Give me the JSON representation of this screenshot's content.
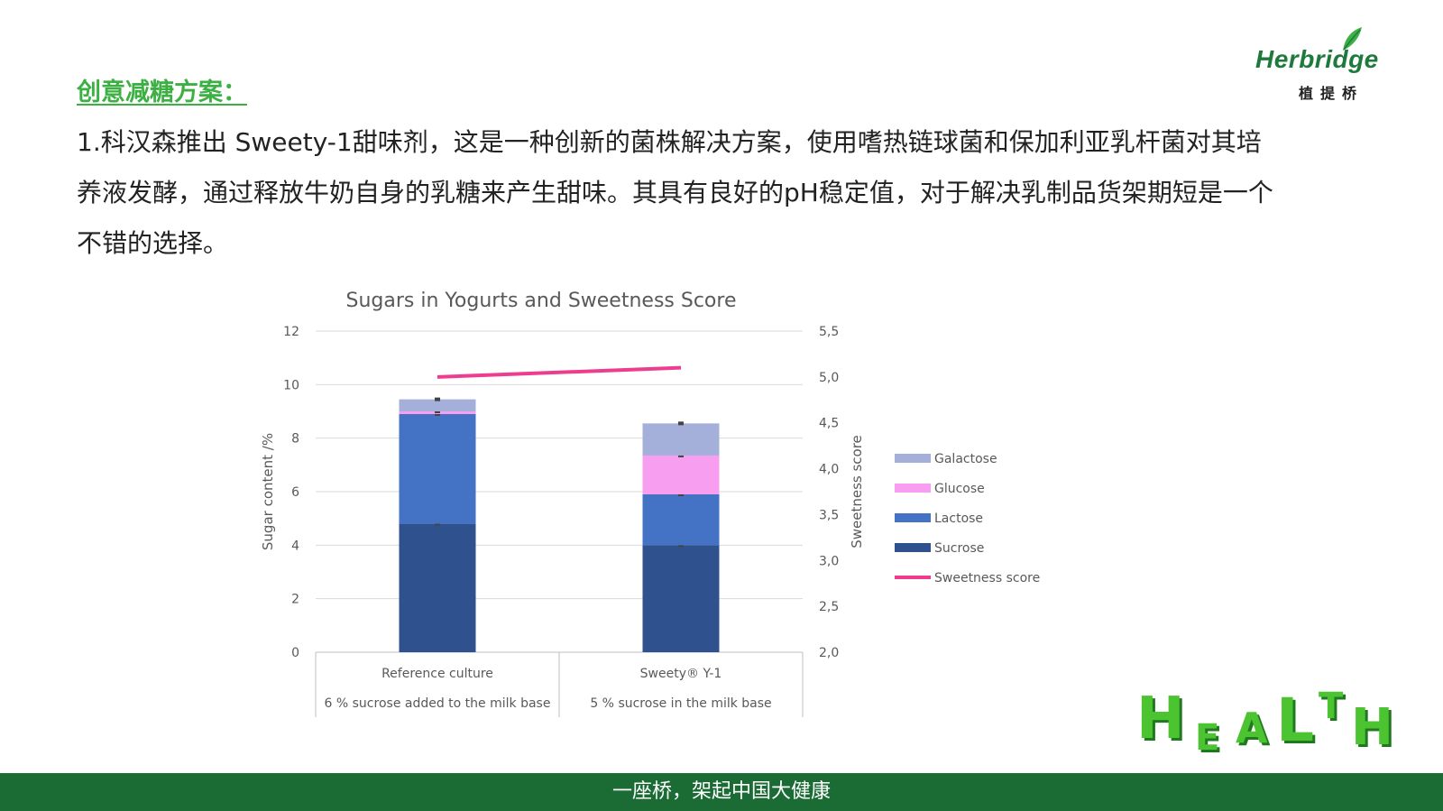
{
  "heading": "创意减糖方案：",
  "paragraph": "1.科汉森推出 Sweety-1甜味剂，这是一种创新的菌株解决方案，使用嗜热链球菌和保加利亚乳杆菌对其培养液发酵，通过释放牛奶自身的乳糖来产生甜味。其具有良好的pH稳定值，对于解决乳制品货架期短是一个不错的选择。",
  "logo": {
    "word": "Herbridge",
    "cn": "植提桥"
  },
  "footer": "一座桥，架起中国大健康",
  "health_art": [
    "H",
    "E",
    "A",
    "L",
    "T",
    "H"
  ],
  "colors": {
    "heading": "#3cb043",
    "footer_bg": "#1a6b34",
    "galactose": "#a4b0da",
    "glucose": "#f79ef0",
    "lactose": "#4472c4",
    "sucrose": "#2f528f",
    "sweetness": "#ee3d8f"
  },
  "chart_data": {
    "type": "bar",
    "stacked": true,
    "title": "Sugars in Yogurts and Sweetness Score",
    "ylabel": "Sugar content  /%",
    "y2label": "Sweetness score",
    "ylim": [
      0,
      12
    ],
    "y2lim": [
      2.0,
      5.5
    ],
    "y_ticks": [
      "0",
      "2",
      "4",
      "6",
      "8",
      "10",
      "12"
    ],
    "y2_ticks": [
      "2,0",
      "2,5",
      "3,0",
      "3,5",
      "4,0",
      "4,5",
      "5,0",
      "5,5"
    ],
    "categories": [
      "Reference culture",
      "Sweety® Y-1"
    ],
    "category_sublabels": [
      "6 % sucrose added to the milk base",
      "5 % sucrose in the milk base"
    ],
    "series": [
      {
        "name": "Sucrose",
        "values": [
          4.8,
          4.0
        ]
      },
      {
        "name": "Lactose",
        "values": [
          4.1,
          1.9
        ]
      },
      {
        "name": "Glucose",
        "values": [
          0.1,
          1.45
        ]
      },
      {
        "name": "Galactose",
        "values": [
          0.45,
          1.2
        ]
      }
    ],
    "line_series": {
      "name": "Sweetness score",
      "values": [
        5.0,
        5.1
      ],
      "axis": "right"
    },
    "legend": {
      "position": "right",
      "entries": [
        "Galactose",
        "Glucose",
        "Lactose",
        "Sucrose",
        "Sweetness score"
      ]
    },
    "grid": true
  }
}
